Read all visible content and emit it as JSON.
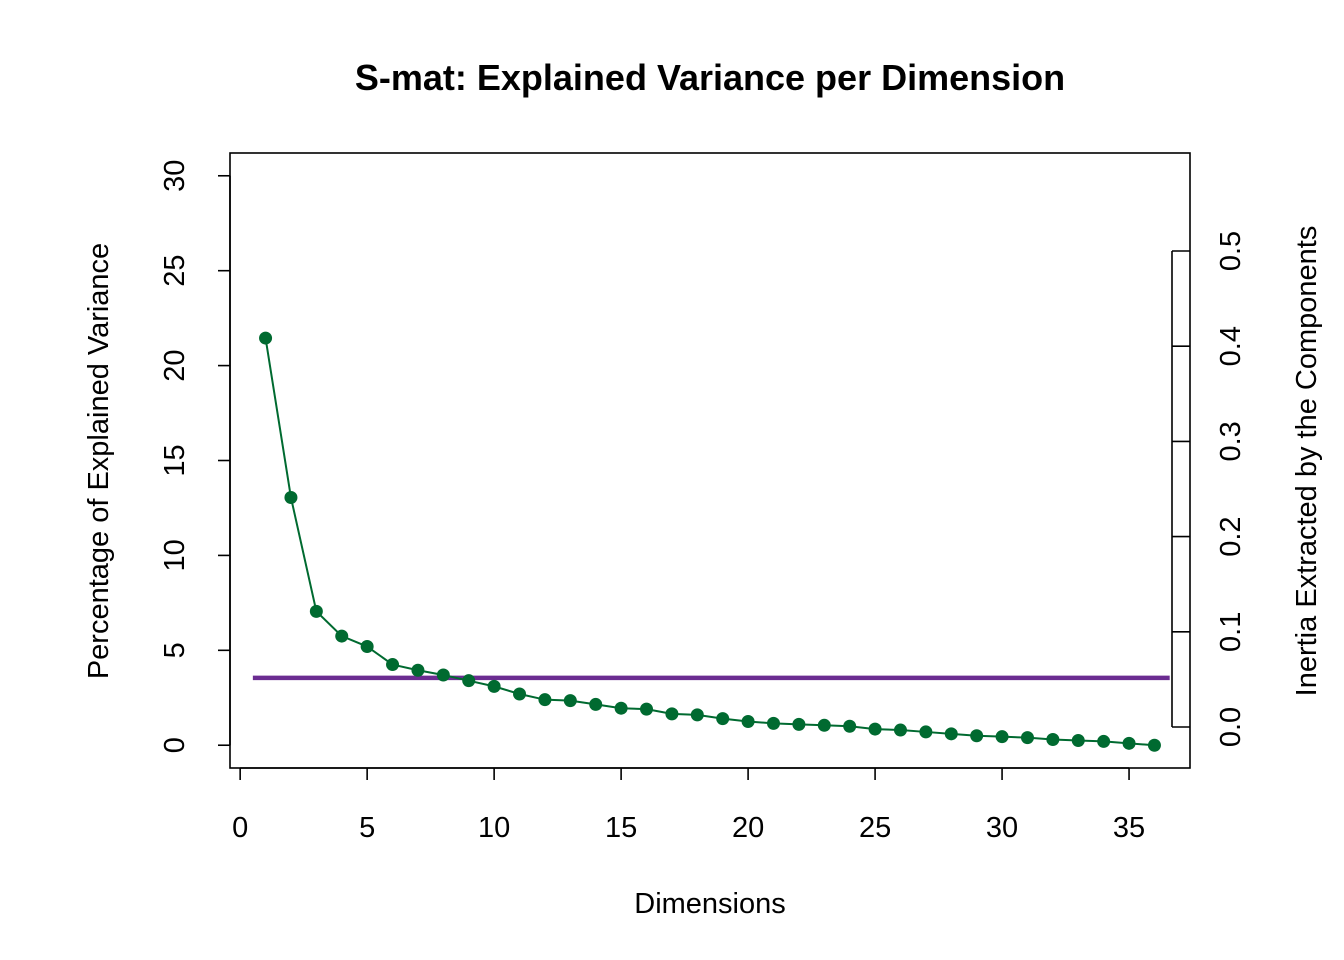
{
  "chart_data": {
    "type": "line",
    "title": "S-mat: Explained Variance per Dimension",
    "xlabel": "Dimensions",
    "ylabel": "Percentage of Explained Variance",
    "y2label": "Inertia Extracted by the Components",
    "xlim": [
      -0.4,
      37.4
    ],
    "ylim": [
      -1.2,
      31.2
    ],
    "xticks": [
      "0",
      "5",
      "10",
      "15",
      "20",
      "25",
      "30",
      "35"
    ],
    "yticks": [
      "0",
      "5",
      "10",
      "15",
      "20",
      "25",
      "30"
    ],
    "y2ticks": [
      "0.0",
      "0.1",
      "0.2",
      "0.3",
      "0.4",
      "0.5"
    ],
    "y2lim": [
      0,
      0.5
    ],
    "grid": false,
    "legend": "none",
    "series": [
      {
        "color": "#006A30",
        "x": [
          1,
          2,
          3,
          4,
          5,
          6,
          7,
          8,
          9,
          10,
          11,
          12,
          13,
          14,
          15,
          16,
          17,
          18,
          19,
          20,
          21,
          22,
          23,
          24,
          25,
          26,
          27,
          28,
          29,
          30,
          31,
          32,
          33,
          34,
          35,
          36
        ],
        "values": [
          21.45,
          13.05,
          7.05,
          5.75,
          5.2,
          4.25,
          3.95,
          3.7,
          3.4,
          3.1,
          2.7,
          2.4,
          2.35,
          2.15,
          1.95,
          1.9,
          1.65,
          1.6,
          1.4,
          1.25,
          1.15,
          1.1,
          1.05,
          1.0,
          0.85,
          0.8,
          0.7,
          0.6,
          0.5,
          0.45,
          0.4,
          0.3,
          0.25,
          0.2,
          0.1,
          0.0
        ]
      }
    ],
    "reference_line": {
      "y": 3.55,
      "x_range": [
        0.5,
        36.6
      ],
      "color": "#6B2C91"
    }
  }
}
